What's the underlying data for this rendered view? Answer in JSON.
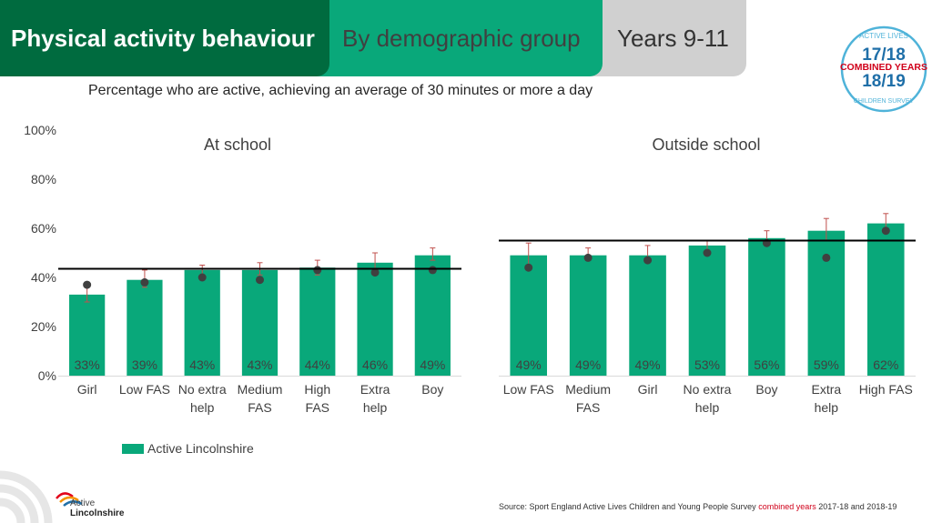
{
  "header": {
    "tab_primary": "Physical activity behaviour",
    "tab_secondary": "By demographic group",
    "tab_tertiary": "Years 9-11"
  },
  "badge": {
    "top_text": "ACTIVE LIVES",
    "year1": "17/18",
    "banner": "COMBINED YEARS",
    "year2": "18/19",
    "bottom_text": "CHILDREN SURVEY"
  },
  "subtitle": "Percentage who are active, achieving an average of 30 minutes or more a day",
  "colors": {
    "bar": "#09a87a",
    "dot": "#404040",
    "error": "#c0504d",
    "reference": "#000000",
    "accent_dark": "#006b3f"
  },
  "legend": {
    "label": "Active Lincolnshire"
  },
  "source": {
    "prefix": "Source: Sport England Active Lives Children and Young People Survey",
    "highlight": "combined years",
    "suffix": "2017-18 and 2018-19"
  },
  "logo": {
    "line1": "Active",
    "line2": "Lincolnshire"
  },
  "chart_data": [
    {
      "type": "bar",
      "title": "At school",
      "categories": [
        "Girl",
        "Low FAS",
        "No extra help",
        "Medium FAS",
        "High FAS",
        "Extra help",
        "Boy"
      ],
      "category_lines": [
        [
          "Girl"
        ],
        [
          "Low FAS"
        ],
        [
          "No extra",
          "help"
        ],
        [
          "Medium",
          "FAS"
        ],
        [
          "High",
          "FAS"
        ],
        [
          "Extra",
          "help"
        ],
        [
          "Boy"
        ]
      ],
      "values": [
        33,
        39,
        43,
        43,
        44,
        46,
        49
      ],
      "value_labels": [
        "33%",
        "39%",
        "43%",
        "43%",
        "44%",
        "46%",
        "49%"
      ],
      "error_low": [
        30,
        36,
        41,
        41,
        41,
        42,
        47
      ],
      "error_high": [
        36,
        43,
        45,
        46,
        47,
        50,
        52
      ],
      "comparison_points": [
        37,
        38,
        40,
        39,
        43,
        42,
        43
      ],
      "reference_line": 43.5,
      "ylim": [
        0,
        100
      ],
      "yticks": [
        "0%",
        "20%",
        "40%",
        "60%",
        "80%",
        "100%"
      ],
      "ytick_values": [
        0,
        20,
        40,
        60,
        80,
        100
      ]
    },
    {
      "type": "bar",
      "title": "Outside school",
      "categories": [
        "Low FAS",
        "Medium FAS",
        "Girl",
        "No extra help",
        "Boy",
        "Extra help",
        "High FAS"
      ],
      "category_lines": [
        [
          "Low FAS"
        ],
        [
          "Medium",
          "FAS"
        ],
        [
          "Girl"
        ],
        [
          "No extra",
          "help"
        ],
        [
          "Boy"
        ],
        [
          "Extra",
          "help"
        ],
        [
          "High FAS"
        ]
      ],
      "values": [
        49,
        49,
        49,
        53,
        56,
        59,
        62
      ],
      "value_labels": [
        "49%",
        "49%",
        "49%",
        "53%",
        "56%",
        "59%",
        "62%"
      ],
      "error_low": [
        45,
        47,
        46,
        51,
        54,
        55,
        60
      ],
      "error_high": [
        54,
        52,
        53,
        55,
        59,
        64,
        66
      ],
      "comparison_points": [
        44,
        48,
        47,
        50,
        54,
        48,
        59
      ],
      "reference_line": 55,
      "ylim": [
        0,
        100
      ]
    }
  ]
}
